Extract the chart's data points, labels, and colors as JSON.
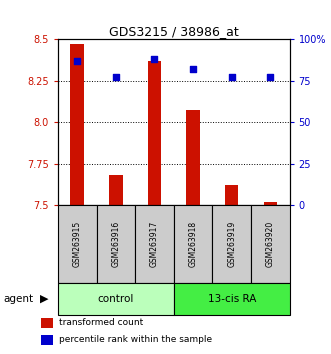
{
  "title": "GDS3215 / 38986_at",
  "samples": [
    "GSM263915",
    "GSM263916",
    "GSM263917",
    "GSM263918",
    "GSM263919",
    "GSM263920"
  ],
  "red_values": [
    8.47,
    7.68,
    8.37,
    8.07,
    7.62,
    7.52
  ],
  "blue_percentiles": [
    87,
    77,
    88,
    82,
    77,
    77
  ],
  "ylim_left": [
    7.5,
    8.5
  ],
  "ylim_right": [
    0,
    100
  ],
  "yticks_left": [
    7.5,
    7.75,
    8.0,
    8.25,
    8.5
  ],
  "yticks_right": [
    0,
    25,
    50,
    75,
    100
  ],
  "ytick_labels_right": [
    "0",
    "25",
    "50",
    "75",
    "100%"
  ],
  "bar_color": "#cc1100",
  "dot_color": "#0000cc",
  "groups": [
    {
      "label": "control",
      "indices": [
        0,
        1,
        2
      ],
      "color": "#bbffbb"
    },
    {
      "label": "13-cis RA",
      "indices": [
        3,
        4,
        5
      ],
      "color": "#44ee44"
    }
  ],
  "legend_items": [
    {
      "label": "transformed count",
      "color": "#cc1100"
    },
    {
      "label": "percentile rank within the sample",
      "color": "#0000cc"
    }
  ],
  "grid_lines": [
    7.75,
    8.0,
    8.25
  ],
  "sample_area_color": "#cccccc",
  "bar_width": 0.35
}
